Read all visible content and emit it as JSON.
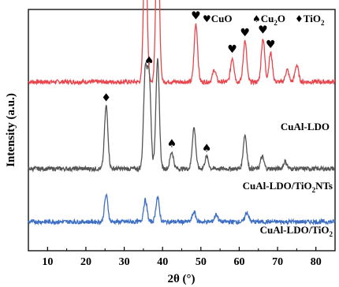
{
  "chart_data": {
    "type": "line",
    "xlabel": "2θ (°)",
    "ylabel": "Intensity (a.u.)",
    "xlim": [
      5,
      85
    ],
    "xticks": [
      10,
      20,
      30,
      40,
      50,
      60,
      70,
      80
    ],
    "yticks": "none",
    "grid": false,
    "legend": {
      "placement": "top-right",
      "entries": [
        {
          "symbol": "heart",
          "text": "CuO"
        },
        {
          "symbol": "spade",
          "text": "Cu",
          "sub": "2",
          "after": "O"
        },
        {
          "symbol": "diamond",
          "text": "TiO",
          "sub": "2",
          "after": ""
        }
      ]
    },
    "series": [
      {
        "name": "CuAl-LDO",
        "color": "#e8454d",
        "baseline": 0.7,
        "peaks": [
          [
            35.5,
            0.62
          ],
          [
            38.7,
            0.67
          ],
          [
            48.7,
            0.24
          ],
          [
            53.5,
            0.05
          ],
          [
            58.2,
            0.1
          ],
          [
            61.5,
            0.17
          ],
          [
            66.2,
            0.18
          ],
          [
            68.2,
            0.12
          ],
          [
            72.5,
            0.05
          ],
          [
            75.0,
            0.07
          ]
        ],
        "markers": [
          {
            "x": 35.5,
            "symbol": "heart"
          },
          {
            "x": 38.7,
            "symbol": "heart"
          },
          {
            "x": 48.7,
            "symbol": "heart"
          },
          {
            "x": 58.2,
            "symbol": "heart"
          },
          {
            "x": 61.5,
            "symbol": "heart"
          },
          {
            "x": 66.2,
            "symbol": "heart"
          },
          {
            "x": 68.2,
            "symbol": "heart"
          }
        ]
      },
      {
        "name": "CuAl-LDO/TiO",
        "name_sub": "2",
        "name_after": "NTs",
        "color": "#555555",
        "baseline": 0.34,
        "peaks": [
          [
            25.3,
            0.26
          ],
          [
            35.5,
            0.4
          ],
          [
            36.5,
            0.38
          ],
          [
            38.7,
            0.45
          ],
          [
            42.4,
            0.07
          ],
          [
            48.2,
            0.17
          ],
          [
            51.5,
            0.05
          ],
          [
            61.5,
            0.14
          ],
          [
            66.0,
            0.05
          ],
          [
            72.0,
            0.03
          ]
        ],
        "markers": [
          {
            "x": 25.3,
            "symbol": "diamond"
          },
          {
            "x": 36.5,
            "symbol": "spade"
          },
          {
            "x": 42.4,
            "symbol": "spade"
          },
          {
            "x": 51.5,
            "symbol": "spade"
          }
        ]
      },
      {
        "name": "CuAl-LDO/TiO",
        "name_sub": "2",
        "name_after": "",
        "color": "#3d6fc4",
        "baseline": 0.12,
        "peaks": [
          [
            25.3,
            0.11
          ],
          [
            35.5,
            0.09
          ],
          [
            38.7,
            0.1
          ],
          [
            48.2,
            0.04
          ],
          [
            54.0,
            0.03
          ],
          [
            62.0,
            0.04
          ]
        ],
        "markers": []
      }
    ]
  }
}
